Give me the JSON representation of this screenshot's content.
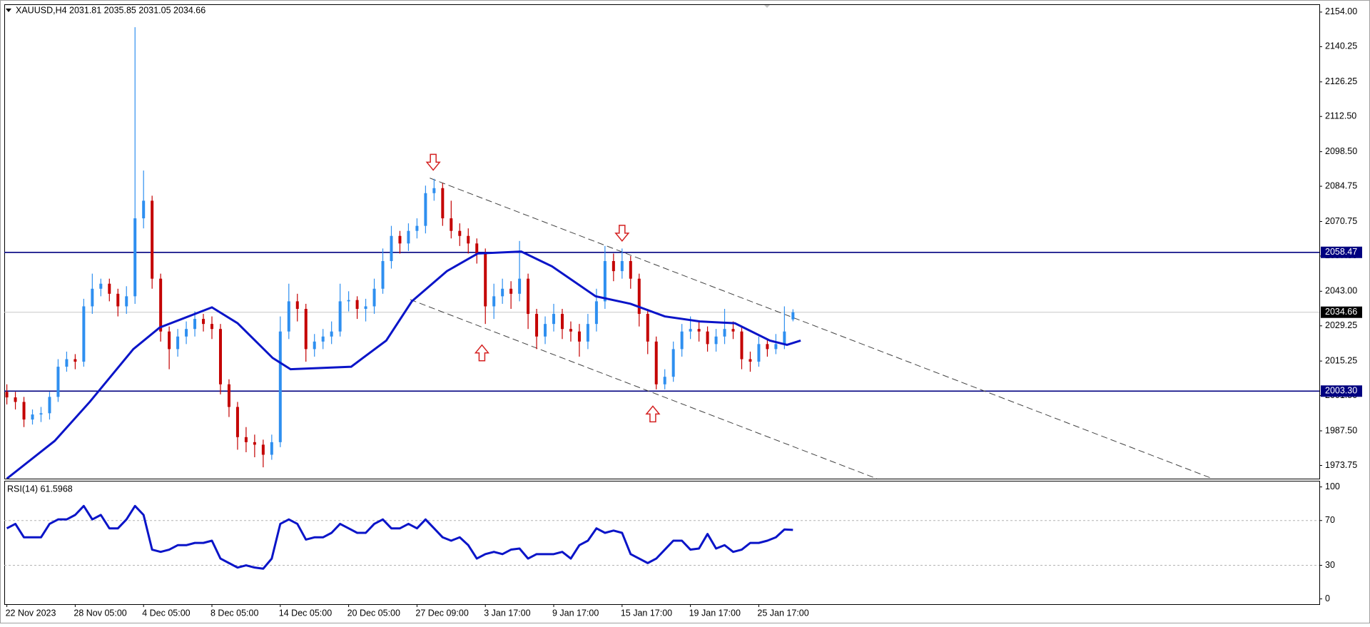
{
  "chart_data": [
    {
      "type": "candlestick",
      "title": "XAUUSD,H4  2031.81 2035.85 2031.05 2034.66",
      "categories": [
        "22 Nov 2023",
        null,
        null,
        null,
        null,
        null,
        null,
        null,
        "28 Nov 05:00",
        null,
        null,
        null,
        null,
        null,
        null,
        null,
        "4 Dec 05:00",
        null,
        null,
        null,
        null,
        null,
        null,
        null,
        "8 Dec 05:00",
        null,
        null,
        null,
        null,
        null,
        null,
        null,
        "14 Dec 05:00",
        null,
        null,
        null,
        null,
        null,
        null,
        null,
        "20 Dec 05:00",
        null,
        null,
        null,
        null,
        null,
        null,
        null,
        "27 Dec 09:00",
        null,
        null,
        null,
        null,
        null,
        null,
        null,
        "3 Jan 17:00",
        null,
        null,
        null,
        null,
        null,
        null,
        null,
        "9 Jan 17:00",
        null,
        null,
        null,
        null,
        null,
        null,
        null,
        "15 Jan 17:00",
        null,
        null,
        null,
        null,
        null,
        null,
        null,
        "19 Jan 17:00",
        null,
        null,
        null,
        null,
        null,
        null,
        null,
        "25 Jan 17:00",
        null,
        null,
        null,
        null
      ],
      "open": [
        2003,
        2000.8,
        1999,
        1992,
        1994,
        1994.5,
        2001,
        2013,
        2016,
        2015,
        2037,
        2044,
        2046,
        2042,
        2037,
        2041,
        2072,
        2079,
        2048,
        2027,
        2020,
        2025,
        2028,
        2032,
        2030,
        2028,
        2006,
        1997,
        1985,
        1983,
        1982,
        1978,
        1983,
        2027,
        2039,
        2036,
        2020,
        2023,
        2025,
        2027,
        2039,
        2039.5,
        2036,
        2037,
        2044,
        2055,
        2065,
        2062,
        2067,
        2069,
        2082,
        2084,
        2072,
        2067,
        2065,
        2062,
        2058,
        2037,
        2041,
        2044,
        2042,
        2048,
        2034,
        2025,
        2030,
        2034,
        2028,
        2027,
        2023,
        2030,
        2039,
        2055,
        2051,
        2055,
        2048,
        2034,
        2023,
        2006,
        2009,
        2020,
        2027,
        2028,
        2027,
        2022,
        2025,
        2028,
        2027,
        2016,
        2015,
        2022,
        2020,
        2022,
        2031.81
      ],
      "high": [
        2006,
        2003,
        2001,
        1996,
        1997,
        2003,
        2016,
        2019,
        2018,
        2040,
        2050,
        2048,
        2048,
        2044,
        2045,
        2148,
        2091,
        2081,
        2050,
        2029,
        2028,
        2031,
        2035,
        2034,
        2033,
        2030,
        2008,
        1999,
        1989,
        1986,
        1984,
        1986,
        2033,
        2046,
        2042,
        2038,
        2026,
        2028,
        2031,
        2046,
        2043,
        2041,
        2040,
        2048,
        2060,
        2069,
        2067,
        2070,
        2072,
        2085,
        2087.7,
        2086,
        2079,
        2070,
        2068,
        2064,
        2060,
        2046,
        2048,
        2047,
        2063,
        2050,
        2036,
        2033,
        2038,
        2036,
        2031,
        2030,
        2034,
        2044,
        2061,
        2058,
        2060,
        2057,
        2050,
        2036,
        2025,
        2012,
        2023,
        2030,
        2033,
        2031,
        2029,
        2028,
        2036,
        2031,
        2029,
        2019,
        2025,
        2024,
        2026,
        2037,
        2035.85
      ],
      "low": [
        1998,
        1996,
        1989,
        1990,
        1991,
        1992,
        1999,
        2011,
        2012,
        2013,
        2034,
        2041,
        2039,
        2033,
        2034,
        2038,
        2068,
        2044,
        2023,
        2012,
        2017,
        2022,
        2025,
        2027,
        2024,
        2002,
        1993,
        1980,
        1979,
        1977,
        1973,
        1976,
        1981,
        2024,
        2031,
        2015,
        2017,
        2020,
        2022,
        2025,
        2035,
        2032,
        2031,
        2034,
        2042,
        2052,
        2058,
        2059,
        2064,
        2066,
        2079,
        2069,
        2064,
        2061,
        2058,
        2054,
        2030,
        2032,
        2038,
        2036,
        2039,
        2028,
        2020,
        2022,
        2027,
        2024,
        2023,
        2017,
        2020,
        2027,
        2036,
        2047,
        2048,
        2044,
        2029,
        2018,
        2004,
        2004,
        2007,
        2017,
        2024,
        2023,
        2019,
        2019,
        2022,
        2024,
        2012,
        2011,
        2013,
        2017,
        2018,
        2020,
        2031.05
      ],
      "close": [
        2000.8,
        1999,
        1992,
        1994,
        1994.5,
        2001,
        2013,
        2016,
        2015,
        2037,
        2044,
        2046,
        2042,
        2037,
        2041,
        2072,
        2079,
        2048,
        2027,
        2020,
        2025,
        2028,
        2032,
        2030,
        2028,
        2006,
        1997,
        1985,
        1983,
        1982,
        1978,
        1983,
        2027,
        2039,
        2036,
        2020,
        2023,
        2025,
        2027,
        2039,
        2039.5,
        2036,
        2037,
        2044,
        2055,
        2065,
        2062,
        2067,
        2069,
        2082,
        2084,
        2072,
        2067,
        2065,
        2062,
        2058,
        2037,
        2041,
        2044,
        2042,
        2048,
        2034,
        2025,
        2030,
        2034,
        2028,
        2027,
        2023,
        2030,
        2039,
        2055,
        2051,
        2055,
        2048,
        2034,
        2023,
        2006,
        2009,
        2020,
        2027,
        2028,
        2027,
        2022,
        2025,
        2028,
        2027,
        2016,
        2015,
        2022,
        2020,
        2022,
        2027,
        2034.66
      ],
      "up_color": "#2e8ff0",
      "down_color": "#c40000",
      "ma": {
        "x": [
          0,
          5.6,
          9.7,
          14.8,
          17.9,
          24,
          27,
          31.1,
          33.2,
          40.3,
          44.4,
          47.4,
          51.5,
          55.1,
          60.2,
          63.8,
          68.9,
          73,
          77,
          81.1,
          85.2,
          89.3,
          91.3,
          92.9
        ],
        "values": [
          1968.5,
          1983.5,
          1999,
          2020,
          2028.6,
          2036.6,
          2030.3,
          2016.5,
          2012,
          2013,
          2023.4,
          2039,
          2051,
          2058,
          2058.8,
          2052.9,
          2041,
          2038,
          2033,
          2031,
          2030.3,
          2023.4,
          2021.7,
          2023.4
        ],
        "color": "#0a14c8"
      },
      "hlines": [
        {
          "value": 2058.47,
          "label": "2058.47",
          "color": "#000080",
          "label_bg": "#000080"
        },
        {
          "value": 2003.3,
          "label": "2003.30",
          "color": "#000080",
          "label_bg": "#000080"
        },
        {
          "value": 2034.66,
          "label": "2034.66",
          "color": "#c8c8c8",
          "label_bg": "#000000"
        }
      ],
      "trendlines": [
        {
          "x": [
            49.5,
            141.1
          ],
          "values": [
            2088,
            1968.5
          ],
          "color": "#444444"
        },
        {
          "x": [
            47.2,
            101.8
          ],
          "values": [
            2039.7,
            1968.5
          ],
          "color": "#444444"
        }
      ],
      "arrows": [
        {
          "x": 49.9,
          "y": 2094.3,
          "direction": "down"
        },
        {
          "x": 72,
          "y": 2066.1,
          "direction": "down"
        },
        {
          "x": 55.6,
          "y": 2018.5,
          "direction": "up"
        },
        {
          "x": 75.6,
          "y": 1994.2,
          "direction": "up"
        }
      ],
      "arrow_color": "#d42020",
      "xlim": [
        -0.3,
        153.6
      ],
      "ylim": [
        1968.5,
        2157.1
      ],
      "yticks": [
        {
          "value": 2154,
          "label": "2154.00"
        },
        {
          "value": 2140.25,
          "label": "2140.25"
        },
        {
          "value": 2126.25,
          "label": "2126.25"
        },
        {
          "value": 2112.5,
          "label": "2112.50"
        },
        {
          "value": 2098.5,
          "label": "2098.50"
        },
        {
          "value": 2084.75,
          "label": "2084.75"
        },
        {
          "value": 2070.75,
          "label": "2070.75"
        },
        {
          "value": 2057,
          "label": "2057.00"
        },
        {
          "value": 2043,
          "label": "2043.00"
        },
        {
          "value": 2029.25,
          "label": "2029.25"
        },
        {
          "value": 2015.25,
          "label": "2015.25"
        },
        {
          "value": 2001.5,
          "label": "2001.50"
        },
        {
          "value": 1987.5,
          "label": "1987.50"
        },
        {
          "value": 1973.75,
          "label": "1973.75"
        }
      ]
    },
    {
      "type": "line",
      "title": "RSI(14) 61.5968",
      "values": [
        63,
        67,
        55,
        55,
        55,
        67,
        71,
        71,
        75,
        83,
        71,
        75,
        63,
        63,
        71,
        83,
        75,
        44,
        42,
        44,
        48,
        48,
        50,
        50,
        52,
        36,
        32,
        28,
        30,
        28,
        27,
        36,
        67,
        71,
        67,
        53,
        55,
        55,
        59,
        67,
        63,
        59,
        59,
        67,
        71,
        63,
        63,
        67,
        63,
        71,
        63,
        55,
        52,
        55,
        48,
        36,
        40,
        42,
        40,
        44,
        45,
        36,
        40,
        40,
        40,
        42,
        36,
        48,
        52,
        63,
        59,
        61,
        59,
        40,
        36,
        32,
        36,
        44,
        52,
        52,
        44,
        45,
        58,
        45,
        48,
        42,
        44,
        50,
        50,
        52,
        55,
        62,
        61.5968
      ],
      "color": "#0a14c8",
      "xlim": [
        -0.3,
        153.6
      ],
      "ylim": [
        -4.7,
        105.5
      ],
      "yticks": [
        100,
        70,
        30,
        0
      ],
      "grid": "inner"
    }
  ]
}
